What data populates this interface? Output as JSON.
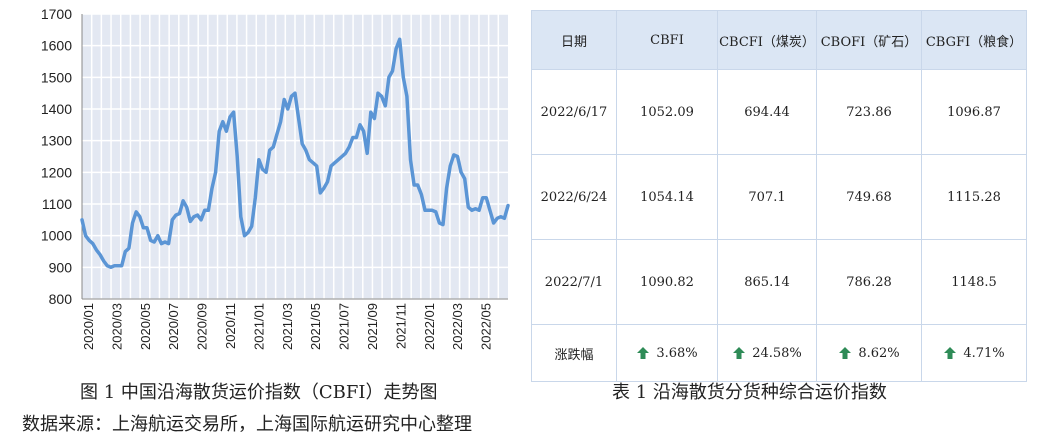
{
  "chart_data": {
    "type": "line",
    "title": "",
    "xlabel": "",
    "ylabel": "",
    "ylim": [
      800,
      1700
    ],
    "yticks": [
      800,
      900,
      1000,
      1100,
      1200,
      1300,
      1400,
      1500,
      1600,
      1700
    ],
    "xtick_labels": [
      "2020/01",
      "2020/03",
      "2020/05",
      "2020/07",
      "2020/09",
      "2020/11",
      "2021/01",
      "2021/03",
      "2021/05",
      "2021/07",
      "2021/09",
      "2021/11",
      "2022/01",
      "2022/03",
      "2022/05"
    ],
    "grid": true,
    "line_color": "#5b95d5",
    "grid_color": "#ffffff",
    "plot_bg": "#e3e8f2",
    "series": [
      {
        "values": [
          1050,
          1000,
          985,
          975,
          955,
          940,
          920,
          905,
          900,
          905,
          905,
          905,
          950,
          960,
          1040,
          1075,
          1060,
          1025,
          1025,
          985,
          980,
          1000,
          975,
          980,
          975,
          1050,
          1065,
          1070,
          1110,
          1090,
          1045,
          1060,
          1065,
          1050,
          1080,
          1080,
          1150,
          1200,
          1330,
          1360,
          1330,
          1375,
          1390,
          1250,
          1060,
          1000,
          1010,
          1030,
          1120,
          1240,
          1210,
          1200,
          1270,
          1280,
          1320,
          1360,
          1430,
          1400,
          1440,
          1450,
          1370,
          1290,
          1270,
          1240,
          1230,
          1220,
          1135,
          1150,
          1170,
          1220,
          1230,
          1240,
          1250,
          1260,
          1280,
          1310,
          1310,
          1350,
          1330,
          1260,
          1390,
          1370,
          1450,
          1440,
          1410,
          1500,
          1520,
          1590,
          1620,
          1500,
          1440,
          1240,
          1160,
          1160,
          1130,
          1080,
          1080,
          1080,
          1075,
          1040,
          1035,
          1150,
          1220,
          1255,
          1250,
          1200,
          1180,
          1090,
          1080,
          1085,
          1080,
          1120,
          1120,
          1080,
          1040,
          1055,
          1060,
          1055,
          1095
        ]
      }
    ]
  },
  "table": {
    "headers": [
      "日期",
      "CBFI",
      "CBCFI（煤炭）",
      "CBOFI（矿石）",
      "CBGFI（粮食）"
    ],
    "rows": [
      [
        "2022/6/17",
        "1052.09",
        "694.44",
        "723.86",
        "1096.87"
      ],
      [
        "2022/6/24",
        "1054.14",
        "707.1",
        "749.68",
        "1115.28"
      ],
      [
        "2022/7/1",
        "1090.82",
        "865.14",
        "786.28",
        "1148.5"
      ]
    ],
    "change_label": "涨跌幅",
    "changes": [
      "3.68%",
      "24.58%",
      "8.62%",
      "4.71%"
    ],
    "arrow_icon": "up-arrow-icon",
    "arrow_color": "#2e8b57",
    "header_bg": "#dbe6f4"
  },
  "captions": {
    "figure": "图 1  中国沿海散货运价指数（CBFI）走势图",
    "table": "表 1  沿海散货分货种综合运价指数",
    "source": "数据来源：上海航运交易所，上海国际航运研究中心整理"
  }
}
